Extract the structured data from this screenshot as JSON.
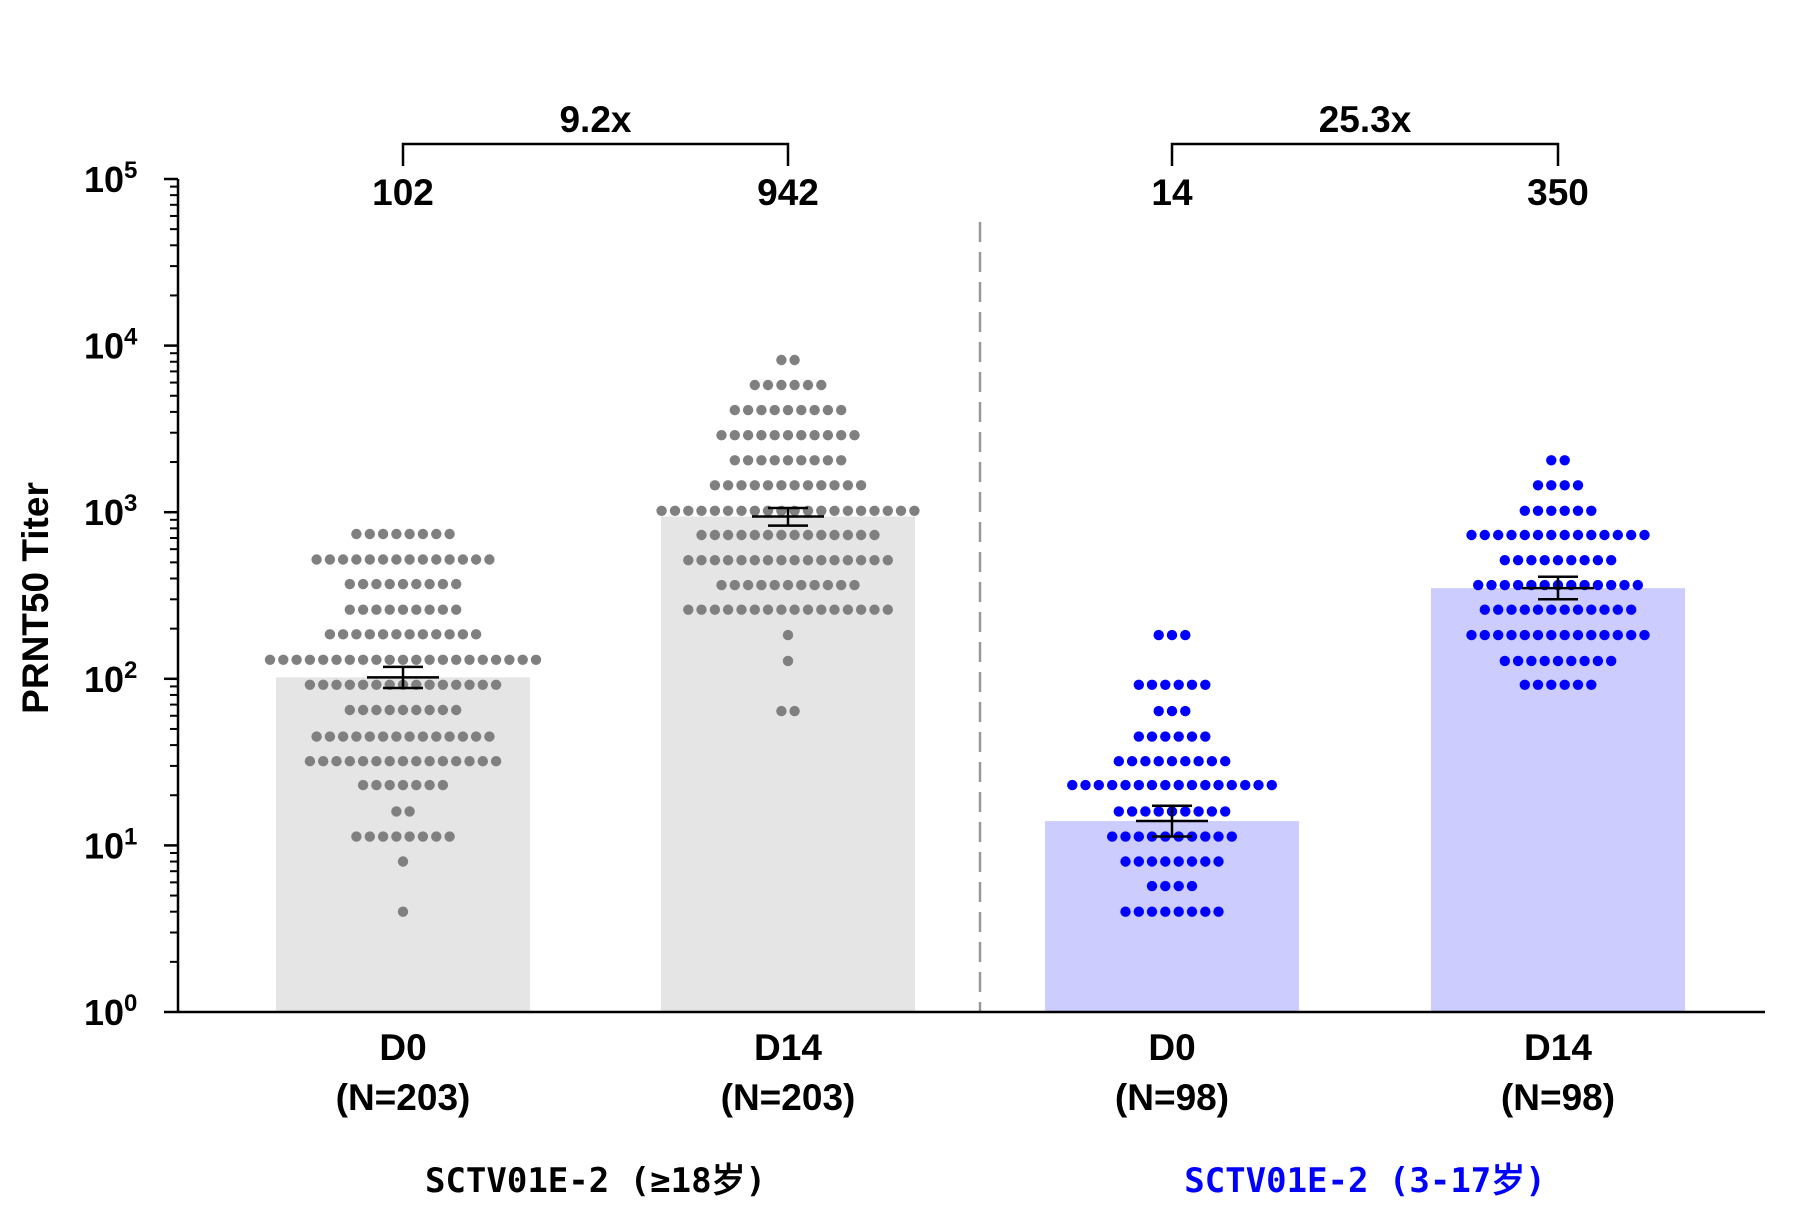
{
  "chart_data": {
    "type": "bar",
    "ylabel": "PRNT50 Titer",
    "yscale": "log",
    "ylim": [
      1,
      100000
    ],
    "y_ticks": [
      {
        "value": 1,
        "base": "10",
        "exp": "0"
      },
      {
        "value": 10,
        "base": "10",
        "exp": "1"
      },
      {
        "value": 100,
        "base": "10",
        "exp": "2"
      },
      {
        "value": 1000,
        "base": "10",
        "exp": "3"
      },
      {
        "value": 10000,
        "base": "10",
        "exp": "4"
      },
      {
        "value": 100000,
        "base": "10",
        "exp": "5"
      }
    ],
    "categories": [
      {
        "name": "D0",
        "n": "(N=203)"
      },
      {
        "name": "D14",
        "n": "(N=203)"
      },
      {
        "name": "D0",
        "n": "(N=98)"
      },
      {
        "name": "D14",
        "n": "(N=98)"
      }
    ],
    "bars": [
      {
        "category": 0,
        "gmt": 102,
        "gmt_label": "102",
        "ci": [
          88,
          118
        ],
        "color": "#e5e5e5",
        "point_color": "#808080"
      },
      {
        "category": 1,
        "gmt": 942,
        "gmt_label": "942",
        "ci": [
          830,
          1060
        ],
        "color": "#e5e5e5",
        "point_color": "#808080"
      },
      {
        "category": 2,
        "gmt": 14,
        "gmt_label": "14",
        "ci": [
          11.3,
          17.3
        ],
        "color": "#ccccff",
        "point_color": "#0000ff"
      },
      {
        "category": 3,
        "gmt": 350,
        "gmt_label": "350",
        "ci": [
          300,
          410
        ],
        "color": "#ccccff",
        "point_color": "#0000ff"
      }
    ],
    "points": [
      {
        "category": 0,
        "rows": [
          {
            "y": 740,
            "count": 8
          },
          {
            "y": 520,
            "count": 14
          },
          {
            "y": 370,
            "count": 9
          },
          {
            "y": 260,
            "count": 9
          },
          {
            "y": 185,
            "count": 12
          },
          {
            "y": 130,
            "count": 21
          },
          {
            "y": 92,
            "count": 15
          },
          {
            "y": 65,
            "count": 9
          },
          {
            "y": 45,
            "count": 14
          },
          {
            "y": 32,
            "count": 15
          },
          {
            "y": 23,
            "count": 7
          },
          {
            "y": 16,
            "count": 2
          },
          {
            "y": 11.3,
            "count": 8
          },
          {
            "y": 8,
            "count": 1
          },
          {
            "y": 4,
            "count": 1
          }
        ]
      },
      {
        "category": 1,
        "rows": [
          {
            "y": 8200,
            "count": 2
          },
          {
            "y": 5800,
            "count": 6
          },
          {
            "y": 4100,
            "count": 9
          },
          {
            "y": 2900,
            "count": 11
          },
          {
            "y": 2050,
            "count": 9
          },
          {
            "y": 1450,
            "count": 12
          },
          {
            "y": 1020,
            "count": 20
          },
          {
            "y": 730,
            "count": 14
          },
          {
            "y": 515,
            "count": 16
          },
          {
            "y": 365,
            "count": 11
          },
          {
            "y": 260,
            "count": 16
          },
          {
            "y": 183,
            "count": 1
          },
          {
            "y": 128,
            "count": 1
          },
          {
            "y": 64,
            "count": 2
          }
        ]
      },
      {
        "category": 2,
        "rows": [
          {
            "y": 183,
            "count": 3
          },
          {
            "y": 92,
            "count": 6
          },
          {
            "y": 64,
            "count": 3
          },
          {
            "y": 45,
            "count": 6
          },
          {
            "y": 32,
            "count": 9
          },
          {
            "y": 23,
            "count": 16
          },
          {
            "y": 16,
            "count": 9
          },
          {
            "y": 11.3,
            "count": 10
          },
          {
            "y": 8,
            "count": 8
          },
          {
            "y": 5.7,
            "count": 4
          },
          {
            "y": 4,
            "count": 8
          }
        ]
      },
      {
        "category": 3,
        "rows": [
          {
            "y": 2050,
            "count": 2
          },
          {
            "y": 1450,
            "count": 4
          },
          {
            "y": 1020,
            "count": 6
          },
          {
            "y": 730,
            "count": 14
          },
          {
            "y": 515,
            "count": 9
          },
          {
            "y": 365,
            "count": 13
          },
          {
            "y": 260,
            "count": 12
          },
          {
            "y": 183,
            "count": 14
          },
          {
            "y": 128,
            "count": 9
          },
          {
            "y": 92,
            "count": 6
          }
        ]
      }
    ],
    "fold_changes": [
      {
        "from": 0,
        "to": 1,
        "label": "9.2x"
      },
      {
        "from": 2,
        "to": 3,
        "label": "25.3x"
      }
    ],
    "groups": [
      {
        "label": "SCTV01E-2 (≥18岁)",
        "categories": [
          0,
          1
        ],
        "color": "#000000"
      },
      {
        "label": "SCTV01E-2 (3-17岁)",
        "categories": [
          2,
          3
        ],
        "color": "#0000ff"
      }
    ],
    "error_bar_color": "#000000",
    "axis_color": "#000000",
    "divider_color": "#999999"
  }
}
